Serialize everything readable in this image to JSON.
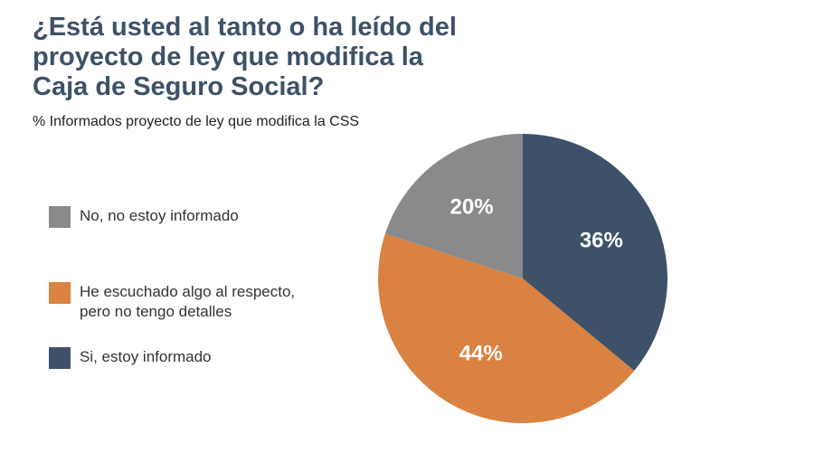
{
  "chart_data": {
    "type": "pie",
    "title": "¿Está usted al tanto o ha leído del\nproyecto de ley que modifica la\nCaja de Seguro Social?",
    "subtitle": "% Informados proyecto de ley que modifica la CSS",
    "legend_position": "left",
    "slices": [
      {
        "label": "Si, estoy informado",
        "value": 36,
        "display": "36%",
        "color": "#3d5168"
      },
      {
        "label": "He escuchado algo al respecto,\npero no tengo detalles",
        "value": 44,
        "display": "44%",
        "color": "#d98241"
      },
      {
        "label": "No, no estoy informado",
        "value": 20,
        "display": "20%",
        "color": "#8a8a8c"
      }
    ],
    "legend_order": [
      2,
      1,
      0
    ]
  }
}
